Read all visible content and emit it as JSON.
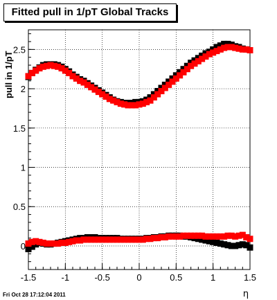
{
  "chart_data": {
    "type": "scatter",
    "title": "Fitted pull in 1/pT  Global Tracks",
    "xlabel": "η",
    "ylabel": "pull in 1/pT",
    "xlim": [
      -1.5,
      1.5
    ],
    "ylim": [
      -0.3,
      2.75
    ],
    "xticks": [
      "-1.5",
      "-1",
      "-0.5",
      "0",
      "0.5",
      "1",
      "1.5"
    ],
    "yticks": [
      "0",
      "0.5",
      "1",
      "1.5",
      "2",
      "2.5"
    ],
    "grid": true,
    "series": [
      {
        "color": "#000000",
        "marker": "square",
        "points": [
          [
            -1.5,
            2.15
          ],
          [
            -1.45,
            2.2
          ],
          [
            -1.4,
            2.24
          ],
          [
            -1.35,
            2.27
          ],
          [
            -1.3,
            2.3
          ],
          [
            -1.25,
            2.31
          ],
          [
            -1.2,
            2.31
          ],
          [
            -1.15,
            2.31
          ],
          [
            -1.1,
            2.3
          ],
          [
            -1.05,
            2.28
          ],
          [
            -1.0,
            2.25
          ],
          [
            -0.95,
            2.22
          ],
          [
            -0.9,
            2.18
          ],
          [
            -0.85,
            2.15
          ],
          [
            -0.8,
            2.12
          ],
          [
            -0.75,
            2.1
          ],
          [
            -0.7,
            2.07
          ],
          [
            -0.65,
            2.04
          ],
          [
            -0.6,
            2.01
          ],
          [
            -0.55,
            1.98
          ],
          [
            -0.5,
            1.95
          ],
          [
            -0.45,
            1.92
          ],
          [
            -0.4,
            1.89
          ],
          [
            -0.35,
            1.86
          ],
          [
            -0.3,
            1.84
          ],
          [
            -0.25,
            1.83
          ],
          [
            -0.2,
            1.82
          ],
          [
            -0.15,
            1.82
          ],
          [
            -0.1,
            1.82
          ],
          [
            -0.05,
            1.83
          ],
          [
            0.0,
            1.83
          ],
          [
            0.05,
            1.84
          ],
          [
            0.1,
            1.86
          ],
          [
            0.15,
            1.89
          ],
          [
            0.2,
            1.93
          ],
          [
            0.25,
            1.97
          ],
          [
            0.3,
            2.01
          ],
          [
            0.35,
            2.05
          ],
          [
            0.4,
            2.09
          ],
          [
            0.45,
            2.13
          ],
          [
            0.5,
            2.17
          ],
          [
            0.55,
            2.21
          ],
          [
            0.6,
            2.25
          ],
          [
            0.65,
            2.29
          ],
          [
            0.7,
            2.33
          ],
          [
            0.75,
            2.36
          ],
          [
            0.8,
            2.39
          ],
          [
            0.85,
            2.42
          ],
          [
            0.9,
            2.45
          ],
          [
            0.95,
            2.47
          ],
          [
            1.0,
            2.5
          ],
          [
            1.05,
            2.53
          ],
          [
            1.1,
            2.55
          ],
          [
            1.15,
            2.57
          ],
          [
            1.2,
            2.57
          ],
          [
            1.25,
            2.56
          ],
          [
            1.3,
            2.54
          ],
          [
            1.35,
            2.53
          ],
          [
            1.4,
            2.51
          ],
          [
            1.45,
            2.5
          ],
          [
            1.5,
            2.49
          ]
        ]
      },
      {
        "color": "#ff0000",
        "marker": "square",
        "points": [
          [
            -1.5,
            2.16
          ],
          [
            -1.45,
            2.2
          ],
          [
            -1.4,
            2.23
          ],
          [
            -1.35,
            2.26
          ],
          [
            -1.3,
            2.28
          ],
          [
            -1.25,
            2.29
          ],
          [
            -1.2,
            2.3
          ],
          [
            -1.15,
            2.29
          ],
          [
            -1.1,
            2.28
          ],
          [
            -1.05,
            2.26
          ],
          [
            -1.0,
            2.23
          ],
          [
            -0.95,
            2.2
          ],
          [
            -0.9,
            2.16
          ],
          [
            -0.85,
            2.13
          ],
          [
            -0.8,
            2.1
          ],
          [
            -0.75,
            2.08
          ],
          [
            -0.7,
            2.05
          ],
          [
            -0.65,
            2.02
          ],
          [
            -0.6,
            1.99
          ],
          [
            -0.55,
            1.96
          ],
          [
            -0.5,
            1.93
          ],
          [
            -0.45,
            1.9
          ],
          [
            -0.4,
            1.87
          ],
          [
            -0.35,
            1.85
          ],
          [
            -0.3,
            1.83
          ],
          [
            -0.25,
            1.81
          ],
          [
            -0.2,
            1.8
          ],
          [
            -0.15,
            1.79
          ],
          [
            -0.1,
            1.79
          ],
          [
            -0.05,
            1.79
          ],
          [
            0.0,
            1.8
          ],
          [
            0.05,
            1.81
          ],
          [
            0.1,
            1.83
          ],
          [
            0.15,
            1.85
          ],
          [
            0.2,
            1.89
          ],
          [
            0.25,
            1.93
          ],
          [
            0.3,
            1.97
          ],
          [
            0.35,
            2.01
          ],
          [
            0.4,
            2.05
          ],
          [
            0.45,
            2.09
          ],
          [
            0.5,
            2.13
          ],
          [
            0.55,
            2.17
          ],
          [
            0.6,
            2.21
          ],
          [
            0.65,
            2.25
          ],
          [
            0.7,
            2.29
          ],
          [
            0.75,
            2.32
          ],
          [
            0.8,
            2.35
          ],
          [
            0.85,
            2.38
          ],
          [
            0.9,
            2.41
          ],
          [
            0.95,
            2.44
          ],
          [
            1.0,
            2.46
          ],
          [
            1.05,
            2.48
          ],
          [
            1.1,
            2.5
          ],
          [
            1.15,
            2.52
          ],
          [
            1.2,
            2.53
          ],
          [
            1.25,
            2.53
          ],
          [
            1.3,
            2.52
          ],
          [
            1.35,
            2.51
          ],
          [
            1.4,
            2.5
          ],
          [
            1.45,
            2.5
          ],
          [
            1.5,
            2.49
          ]
        ]
      },
      {
        "color": "#000000",
        "marker": "square",
        "points": [
          [
            -1.5,
            -0.04
          ],
          [
            -1.45,
            -0.01
          ],
          [
            -1.4,
            0.02
          ],
          [
            -1.35,
            0.04
          ],
          [
            -1.3,
            0.03
          ],
          [
            -1.25,
            0.02
          ],
          [
            -1.2,
            0.02
          ],
          [
            -1.15,
            0.03
          ],
          [
            -1.1,
            0.04
          ],
          [
            -1.05,
            0.05
          ],
          [
            -1.0,
            0.06
          ],
          [
            -0.95,
            0.07
          ],
          [
            -0.9,
            0.08
          ],
          [
            -0.85,
            0.09
          ],
          [
            -0.8,
            0.1
          ],
          [
            -0.75,
            0.1
          ],
          [
            -0.7,
            0.11
          ],
          [
            -0.65,
            0.11
          ],
          [
            -0.6,
            0.11
          ],
          [
            -0.55,
            0.1
          ],
          [
            -0.5,
            0.1
          ],
          [
            -0.45,
            0.1
          ],
          [
            -0.4,
            0.1
          ],
          [
            -0.35,
            0.1
          ],
          [
            -0.3,
            0.1
          ],
          [
            -0.25,
            0.09
          ],
          [
            -0.2,
            0.09
          ],
          [
            -0.15,
            0.09
          ],
          [
            -0.1,
            0.09
          ],
          [
            -0.05,
            0.09
          ],
          [
            0.0,
            0.09
          ],
          [
            0.05,
            0.09
          ],
          [
            0.1,
            0.1
          ],
          [
            0.15,
            0.1
          ],
          [
            0.2,
            0.11
          ],
          [
            0.25,
            0.11
          ],
          [
            0.3,
            0.12
          ],
          [
            0.35,
            0.12
          ],
          [
            0.4,
            0.13
          ],
          [
            0.45,
            0.13
          ],
          [
            0.5,
            0.13
          ],
          [
            0.55,
            0.13
          ],
          [
            0.6,
            0.12
          ],
          [
            0.65,
            0.12
          ],
          [
            0.7,
            0.11
          ],
          [
            0.75,
            0.1
          ],
          [
            0.8,
            0.09
          ],
          [
            0.85,
            0.08
          ],
          [
            0.9,
            0.07
          ],
          [
            0.95,
            0.06
          ],
          [
            1.0,
            0.05
          ],
          [
            1.05,
            0.04
          ],
          [
            1.1,
            0.03
          ],
          [
            1.15,
            0.02
          ],
          [
            1.2,
            0.01
          ],
          [
            1.25,
            0.0
          ],
          [
            1.3,
            0.0
          ],
          [
            1.35,
            0.01
          ],
          [
            1.4,
            0.02
          ],
          [
            1.45,
            0.01
          ],
          [
            1.5,
            -0.02
          ]
        ]
      },
      {
        "color": "#ff0000",
        "marker": "square",
        "points": [
          [
            -1.5,
            0.03
          ],
          [
            -1.45,
            0.05
          ],
          [
            -1.4,
            0.06
          ],
          [
            -1.35,
            0.05
          ],
          [
            -1.3,
            0.04
          ],
          [
            -1.25,
            0.03
          ],
          [
            -1.2,
            0.03
          ],
          [
            -1.15,
            0.03
          ],
          [
            -1.1,
            0.03
          ],
          [
            -1.05,
            0.04
          ],
          [
            -1.0,
            0.04
          ],
          [
            -0.95,
            0.05
          ],
          [
            -0.9,
            0.06
          ],
          [
            -0.85,
            0.07
          ],
          [
            -0.8,
            0.07
          ],
          [
            -0.75,
            0.08
          ],
          [
            -0.7,
            0.08
          ],
          [
            -0.65,
            0.08
          ],
          [
            -0.6,
            0.08
          ],
          [
            -0.55,
            0.08
          ],
          [
            -0.5,
            0.08
          ],
          [
            -0.45,
            0.08
          ],
          [
            -0.4,
            0.08
          ],
          [
            -0.35,
            0.08
          ],
          [
            -0.3,
            0.08
          ],
          [
            -0.25,
            0.08
          ],
          [
            -0.2,
            0.08
          ],
          [
            -0.15,
            0.08
          ],
          [
            -0.1,
            0.08
          ],
          [
            -0.05,
            0.08
          ],
          [
            0.0,
            0.08
          ],
          [
            0.05,
            0.08
          ],
          [
            0.1,
            0.09
          ],
          [
            0.15,
            0.09
          ],
          [
            0.2,
            0.1
          ],
          [
            0.25,
            0.1
          ],
          [
            0.3,
            0.11
          ],
          [
            0.35,
            0.11
          ],
          [
            0.4,
            0.12
          ],
          [
            0.45,
            0.12
          ],
          [
            0.5,
            0.12
          ],
          [
            0.55,
            0.12
          ],
          [
            0.6,
            0.13
          ],
          [
            0.65,
            0.13
          ],
          [
            0.7,
            0.13
          ],
          [
            0.75,
            0.13
          ],
          [
            0.8,
            0.13
          ],
          [
            0.85,
            0.13
          ],
          [
            0.9,
            0.12
          ],
          [
            0.95,
            0.12
          ],
          [
            1.0,
            0.12
          ],
          [
            1.05,
            0.12
          ],
          [
            1.1,
            0.12
          ],
          [
            1.15,
            0.12
          ],
          [
            1.2,
            0.13
          ],
          [
            1.25,
            0.13
          ],
          [
            1.3,
            0.12
          ],
          [
            1.35,
            0.13
          ],
          [
            1.4,
            0.14
          ],
          [
            1.45,
            0.11
          ],
          [
            1.5,
            0.09
          ]
        ]
      }
    ]
  },
  "timestamp": "Fri Oct 28 17:12:04 2011"
}
